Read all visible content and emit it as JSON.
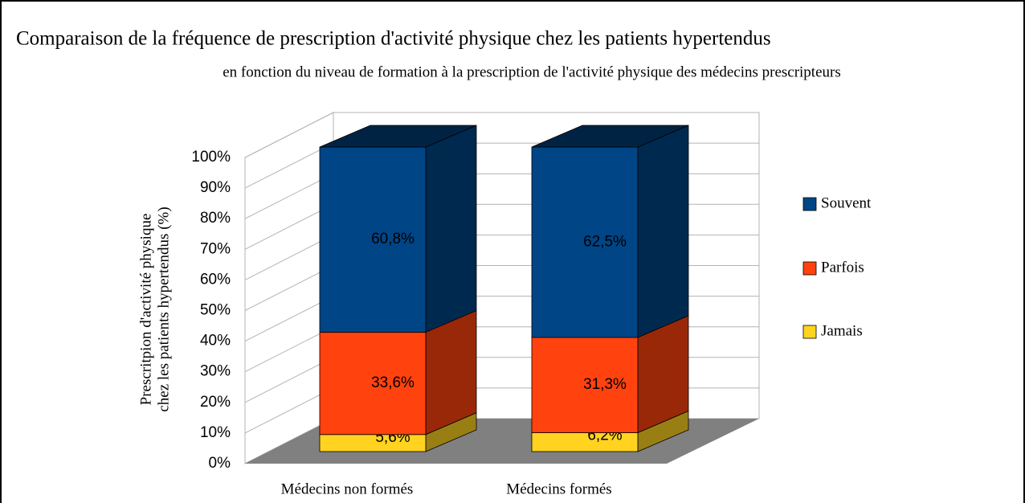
{
  "chart_data": {
    "type": "bar3d_stacked",
    "title": "Comparaison de la fréquence de prescription d'activité physique chez les patients hypertendus",
    "subtitle": "en fonction du niveau de formation à la prescription de l'activité physique des médecins prescripteurs",
    "y_label": [
      "Prescritpion d'activité physique",
      "chez les patients hypertendus (%)"
    ],
    "categories": [
      "Médecins non formés",
      "Médecins formés"
    ],
    "series": [
      {
        "name": "Jamais",
        "color": "#ffd320",
        "values": [
          5.6,
          6.2
        ],
        "value_labels": [
          "5,6%",
          "6,2%"
        ]
      },
      {
        "name": "Parfois",
        "color": "#ff420e",
        "values": [
          33.6,
          31.3
        ],
        "value_labels": [
          "33,6%",
          "31,3%"
        ]
      },
      {
        "name": "Souvent",
        "color": "#004586",
        "values": [
          60.8,
          62.5
        ],
        "value_labels": [
          "60,8%",
          "62,5%"
        ]
      }
    ],
    "ylim": [
      0,
      100
    ],
    "yticks": [
      {
        "value": 0,
        "label": "0%"
      },
      {
        "value": 10,
        "label": "10%"
      },
      {
        "value": 20,
        "label": "20%"
      },
      {
        "value": 30,
        "label": "30%"
      },
      {
        "value": 40,
        "label": "40%"
      },
      {
        "value": 50,
        "label": "50%"
      },
      {
        "value": 60,
        "label": "60%"
      },
      {
        "value": 70,
        "label": "70%"
      },
      {
        "value": 80,
        "label": "80%"
      },
      {
        "value": 90,
        "label": "90%"
      },
      {
        "value": 100,
        "label": "100%"
      }
    ],
    "grid": true,
    "legend": "right"
  }
}
